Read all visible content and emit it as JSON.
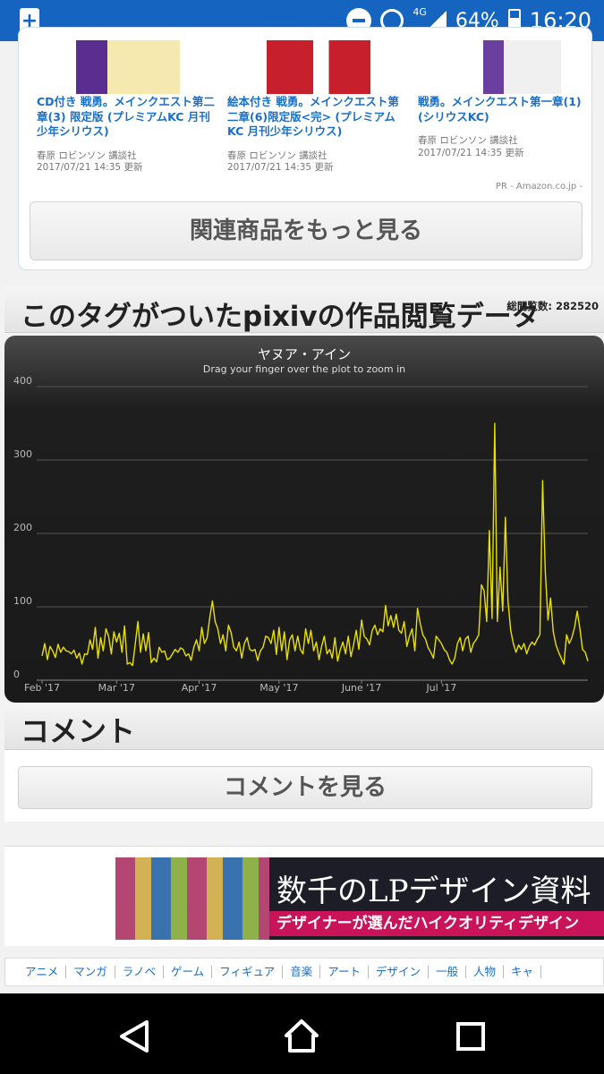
{
  "status_bar": {
    "battery": "64%",
    "time": "16:20",
    "network": "4G"
  },
  "products": [
    {
      "title": "CD付き 戦勇。メインクエスト第二章(3) 限定版 (プレミアムKC 月刊少年シリウス)",
      "author": "春原 ロビンソン 講談社",
      "updated": "2017/07/21 14:35 更新",
      "thumb_color": "#5a2d91"
    },
    {
      "title": "絵本付き 戦勇。メインクエスト第二章(6)限定版<完> (プレミアムKC 月刊少年シリウス)",
      "author": "春原 ロビンソン 講談社",
      "updated": "2017/07/21 14:35 更新",
      "thumb_color": "#c71f2b"
    },
    {
      "title": "戦勇。メインクエスト第一章(1) (シリウスKC)",
      "author": "春原 ロビンソン 講談社",
      "updated": "2017/07/21 14:35 更新",
      "thumb_color": "#6b3fa0"
    }
  ],
  "pr_note": "PR - Amazon.co.jp -",
  "more_products_label": "関連商品をもっと見る",
  "views_section": {
    "title": "このタグがついたpixivの作品閲覧データ",
    "total": "総閲覧数: 282520"
  },
  "chart_data": {
    "type": "line",
    "title": "ヤヌア・アイン",
    "subtitle": "Drag your finger over the plot to zoom in",
    "xlabel": "",
    "ylabel": "",
    "ylim": [
      0,
      400
    ],
    "y_ticks": [
      0,
      100,
      200,
      300,
      400
    ],
    "x_ticks": [
      "Feb '17",
      "Mar '17",
      "Apr '17",
      "May '17",
      "June '17",
      "Jul '17"
    ],
    "x_tick_days": [
      0,
      28,
      59,
      89,
      120,
      150
    ],
    "grid": true,
    "series_color": "#e8e000",
    "values": [
      33,
      50,
      28,
      46,
      40,
      31,
      49,
      38,
      45,
      40,
      39,
      36,
      41,
      30,
      37,
      22,
      36,
      35,
      55,
      42,
      72,
      30,
      58,
      40,
      70,
      60,
      36,
      66,
      52,
      64,
      38,
      74,
      22,
      24,
      20,
      49,
      80,
      38,
      63,
      40,
      65,
      24,
      30,
      25,
      45,
      38,
      40,
      28,
      30,
      36,
      42,
      38,
      44,
      42,
      33,
      36,
      27,
      45,
      55,
      40,
      72,
      50,
      58,
      86,
      108,
      80,
      70,
      50,
      62,
      40,
      75,
      65,
      45,
      40,
      52,
      30,
      50,
      58,
      42,
      40,
      42,
      27,
      40,
      45,
      60,
      58,
      50,
      68,
      35,
      72,
      40,
      66,
      28,
      55,
      62,
      40,
      60,
      42,
      36,
      70,
      50,
      68,
      40,
      52,
      28,
      46,
      60,
      36,
      42,
      30,
      58,
      26,
      42,
      52,
      36,
      60,
      32,
      48,
      68,
      42,
      82,
      60,
      56,
      48,
      68,
      75,
      62,
      70,
      66,
      102,
      74,
      88,
      72,
      90,
      68,
      64,
      80,
      46,
      60,
      70,
      40,
      98,
      78,
      62,
      56,
      44,
      38,
      30,
      60,
      55,
      50,
      42,
      38,
      28,
      22,
      30,
      50,
      58,
      40,
      56,
      60,
      38,
      50,
      55,
      62,
      130,
      122,
      80,
      204,
      84,
      350,
      80,
      154,
      94,
      222,
      108,
      68,
      50,
      38,
      48,
      42,
      50,
      36,
      46,
      52,
      48,
      56,
      62,
      272,
      148,
      82,
      112,
      66,
      48,
      38,
      30,
      22,
      62,
      50,
      58,
      72,
      94,
      70,
      42,
      38,
      26
    ],
    "y_scale_note": ""
  },
  "comment_section": {
    "title": "コメント",
    "button": "コメントを見る"
  },
  "ad": {
    "line1": "数千のLPデザイン資料",
    "line2": "デザイナーが選んだハイクオリティデザイン"
  },
  "tag_nav": [
    "アニメ",
    "マンガ",
    "ラノベ",
    "ゲーム",
    "フィギュア",
    "音楽",
    "アート",
    "デザイン",
    "一般",
    "人物",
    "キャ"
  ]
}
